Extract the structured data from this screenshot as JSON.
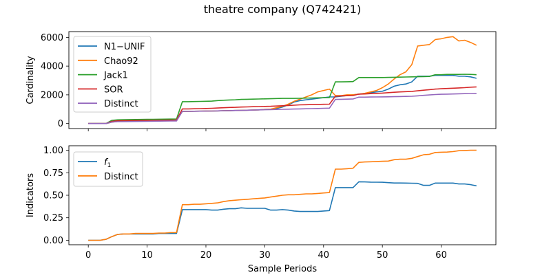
{
  "figure": {
    "title": "theatre company (Q742421)"
  },
  "chart_data": [
    {
      "type": "line",
      "title": "",
      "xlabel": "",
      "ylabel": "Cardinality",
      "xlim": [
        -3.3,
        69.3
      ],
      "ylim": [
        -350,
        6400
      ],
      "xticks": [
        0,
        10,
        20,
        30,
        40,
        50,
        60
      ],
      "yticks": [
        0,
        2000,
        4000,
        6000
      ],
      "ytick_labels": [
        "0",
        "2000",
        "4000",
        "6000"
      ],
      "show_xtick_labels": false,
      "legend_position": "upper-left",
      "x": [
        0,
        1,
        2,
        3,
        4,
        5,
        6,
        7,
        8,
        9,
        10,
        11,
        12,
        13,
        14,
        15,
        16,
        17,
        18,
        19,
        20,
        21,
        22,
        23,
        24,
        25,
        26,
        27,
        28,
        29,
        30,
        31,
        32,
        33,
        34,
        35,
        36,
        37,
        38,
        39,
        40,
        41,
        42,
        43,
        44,
        45,
        46,
        47,
        48,
        49,
        50,
        51,
        52,
        53,
        54,
        55,
        56,
        57,
        58,
        59,
        60,
        61,
        62,
        63,
        64,
        65,
        66
      ],
      "series": [
        {
          "name": "N1−UNIF",
          "color": "#1f77b4",
          "values": [
            0,
            0,
            0,
            0,
            100,
            150,
            160,
            170,
            175,
            180,
            185,
            190,
            195,
            200,
            205,
            210,
            850,
            850,
            855,
            860,
            865,
            870,
            880,
            890,
            900,
            910,
            920,
            930,
            940,
            950,
            980,
            1000,
            1050,
            1150,
            1300,
            1500,
            1600,
            1650,
            1700,
            1750,
            1800,
            1850,
            1850,
            1900,
            1950,
            2000,
            2050,
            2100,
            2150,
            2200,
            2250,
            2400,
            2600,
            2700,
            2750,
            2900,
            3300,
            3300,
            3300,
            3350,
            3350,
            3350,
            3350,
            3300,
            3300,
            3250,
            3150
          ]
        },
        {
          "name": "Chao92",
          "color": "#ff7f0e",
          "values": [
            0,
            0,
            0,
            0,
            100,
            150,
            160,
            170,
            175,
            180,
            185,
            190,
            195,
            200,
            205,
            210,
            850,
            850,
            855,
            860,
            865,
            870,
            880,
            890,
            900,
            910,
            920,
            930,
            940,
            950,
            980,
            1000,
            1100,
            1200,
            1350,
            1550,
            1700,
            1850,
            2000,
            2200,
            2300,
            2400,
            1950,
            1950,
            2000,
            2000,
            2050,
            2100,
            2200,
            2300,
            2500,
            2750,
            3100,
            3400,
            3600,
            4100,
            5400,
            5450,
            5500,
            5850,
            5900,
            6000,
            6050,
            5750,
            5800,
            5650,
            5450
          ]
        },
        {
          "name": "Jack1",
          "color": "#2ca02c",
          "values": [
            0,
            0,
            0,
            0,
            220,
            260,
            270,
            275,
            280,
            285,
            290,
            295,
            300,
            305,
            310,
            315,
            1520,
            1520,
            1530,
            1540,
            1550,
            1560,
            1600,
            1620,
            1640,
            1650,
            1680,
            1690,
            1700,
            1710,
            1720,
            1730,
            1740,
            1750,
            1750,
            1750,
            1760,
            1770,
            1780,
            1790,
            1800,
            1810,
            2900,
            2900,
            2910,
            2920,
            3200,
            3200,
            3200,
            3200,
            3200,
            3210,
            3220,
            3230,
            3240,
            3250,
            3260,
            3270,
            3280,
            3400,
            3400,
            3420,
            3420,
            3420,
            3430,
            3420,
            3400
          ]
        },
        {
          "name": "SOR",
          "color": "#d62728",
          "values": [
            0,
            0,
            0,
            0,
            150,
            190,
            200,
            205,
            210,
            215,
            220,
            225,
            230,
            235,
            240,
            245,
            1020,
            1020,
            1030,
            1040,
            1050,
            1060,
            1080,
            1100,
            1120,
            1130,
            1150,
            1160,
            1170,
            1180,
            1190,
            1200,
            1220,
            1240,
            1260,
            1280,
            1300,
            1310,
            1320,
            1330,
            1340,
            1350,
            1900,
            1920,
            1940,
            1950,
            2050,
            2060,
            2080,
            2100,
            2120,
            2150,
            2180,
            2200,
            2220,
            2240,
            2280,
            2320,
            2360,
            2400,
            2420,
            2440,
            2460,
            2480,
            2500,
            2530,
            2550
          ]
        },
        {
          "name": "Distinct",
          "color": "#9467bd",
          "values": [
            0,
            0,
            0,
            0,
            100,
            130,
            135,
            140,
            145,
            150,
            155,
            160,
            165,
            170,
            175,
            180,
            850,
            850,
            855,
            860,
            865,
            870,
            880,
            890,
            900,
            910,
            920,
            930,
            940,
            950,
            960,
            970,
            980,
            990,
            1000,
            1010,
            1020,
            1030,
            1040,
            1050,
            1060,
            1070,
            1680,
            1690,
            1700,
            1710,
            1840,
            1840,
            1845,
            1850,
            1855,
            1860,
            1870,
            1880,
            1890,
            1900,
            1930,
            1960,
            1990,
            2020,
            2040,
            2050,
            2060,
            2070,
            2080,
            2090,
            2100
          ]
        }
      ]
    },
    {
      "type": "line",
      "title": "",
      "xlabel": "Sample Periods",
      "ylabel": "Indicators",
      "xlim": [
        -3.3,
        69.3
      ],
      "ylim": [
        -0.05,
        1.05
      ],
      "xticks": [
        0,
        10,
        20,
        30,
        40,
        50,
        60
      ],
      "xtick_labels": [
        "0",
        "10",
        "20",
        "30",
        "40",
        "50",
        "60"
      ],
      "yticks": [
        0,
        0.25,
        0.5,
        0.75,
        1.0
      ],
      "ytick_labels": [
        "0.00",
        "0.25",
        "0.50",
        "0.75",
        "1.00"
      ],
      "legend_position": "upper-left",
      "x": [
        0,
        1,
        2,
        3,
        4,
        5,
        6,
        7,
        8,
        9,
        10,
        11,
        12,
        13,
        14,
        15,
        16,
        17,
        18,
        19,
        20,
        21,
        22,
        23,
        24,
        25,
        26,
        27,
        28,
        29,
        30,
        31,
        32,
        33,
        34,
        35,
        36,
        37,
        38,
        39,
        40,
        41,
        42,
        43,
        44,
        45,
        46,
        47,
        48,
        49,
        50,
        51,
        52,
        53,
        54,
        55,
        56,
        57,
        58,
        59,
        60,
        61,
        62,
        63,
        64,
        65,
        66
      ],
      "series": [
        {
          "name": "f1",
          "color": "#1f77b4",
          "values": [
            0.0,
            0.0,
            0.0,
            0.01,
            0.04,
            0.065,
            0.07,
            0.07,
            0.07,
            0.07,
            0.07,
            0.07,
            0.075,
            0.075,
            0.075,
            0.075,
            0.34,
            0.34,
            0.34,
            0.34,
            0.34,
            0.335,
            0.335,
            0.345,
            0.35,
            0.35,
            0.36,
            0.355,
            0.355,
            0.355,
            0.355,
            0.335,
            0.335,
            0.34,
            0.335,
            0.325,
            0.32,
            0.32,
            0.32,
            0.32,
            0.325,
            0.33,
            0.585,
            0.585,
            0.585,
            0.585,
            0.65,
            0.648,
            0.646,
            0.645,
            0.644,
            0.64,
            0.636,
            0.636,
            0.635,
            0.634,
            0.632,
            0.61,
            0.61,
            0.635,
            0.635,
            0.635,
            0.635,
            0.625,
            0.625,
            0.618,
            0.605
          ]
        },
        {
          "name": "Distinct",
          "color": "#ff7f0e",
          "values": [
            0.0,
            0.0,
            0.0,
            0.01,
            0.04,
            0.065,
            0.07,
            0.07,
            0.075,
            0.075,
            0.075,
            0.075,
            0.08,
            0.08,
            0.085,
            0.085,
            0.395,
            0.395,
            0.4,
            0.4,
            0.405,
            0.41,
            0.415,
            0.43,
            0.44,
            0.445,
            0.45,
            0.455,
            0.46,
            0.465,
            0.47,
            0.48,
            0.49,
            0.5,
            0.505,
            0.505,
            0.51,
            0.515,
            0.515,
            0.52,
            0.525,
            0.53,
            0.79,
            0.79,
            0.795,
            0.8,
            0.865,
            0.87,
            0.872,
            0.875,
            0.877,
            0.88,
            0.895,
            0.9,
            0.9,
            0.91,
            0.93,
            0.95,
            0.955,
            0.975,
            0.978,
            0.98,
            0.985,
            0.995,
            0.997,
            1.0,
            1.0
          ]
        }
      ]
    }
  ]
}
